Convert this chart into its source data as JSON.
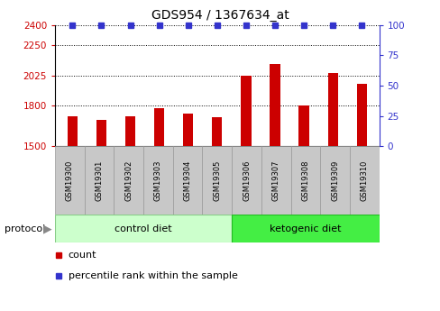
{
  "title": "GDS954 / 1367634_at",
  "samples": [
    "GSM19300",
    "GSM19301",
    "GSM19302",
    "GSM19303",
    "GSM19304",
    "GSM19305",
    "GSM19306",
    "GSM19307",
    "GSM19308",
    "GSM19309",
    "GSM19310"
  ],
  "counts": [
    1720,
    1698,
    1720,
    1782,
    1740,
    1718,
    2022,
    2110,
    1800,
    2042,
    1960
  ],
  "percentile_ranks": [
    100,
    100,
    100,
    100,
    100,
    100,
    100,
    100,
    100,
    100,
    100
  ],
  "ylim_left": [
    1500,
    2400
  ],
  "ylim_right": [
    0,
    100
  ],
  "yticks_left": [
    1500,
    1800,
    2025,
    2250,
    2400
  ],
  "yticks_right": [
    0,
    25,
    50,
    75,
    100
  ],
  "bar_color": "#cc0000",
  "dot_color": "#3333cc",
  "ctrl_color": "#ccffcc",
  "keto_color": "#44ee44",
  "ctrl_count": 6,
  "keto_count": 5,
  "groups": [
    "control diet",
    "ketogenic diet"
  ],
  "protocol_label": "protocol",
  "legend_count_label": "count",
  "legend_pct_label": "percentile rank within the sample",
  "bg_color": "#ffffff",
  "box_color": "#c8c8c8",
  "box_edge_color": "#999999"
}
